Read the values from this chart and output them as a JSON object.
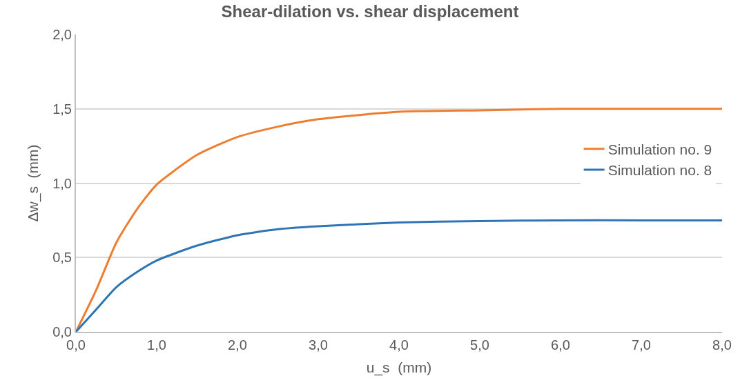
{
  "chart_data": {
    "type": "line",
    "title": "Shear-dilation vs. shear displacement",
    "xlabel": "u_s  (mm)",
    "ylabel": "Δw_s  (mm)",
    "x": [
      0,
      0.25,
      0.5,
      0.75,
      1,
      1.5,
      2,
      2.5,
      3,
      4,
      5,
      6,
      7,
      8
    ],
    "series": [
      {
        "name": "Simulation no. 9",
        "color": "#ed7d31",
        "values": [
          0,
          0.28,
          0.6,
          0.82,
          0.99,
          1.19,
          1.31,
          1.38,
          1.43,
          1.48,
          1.49,
          1.5,
          1.5,
          1.5
        ]
      },
      {
        "name": "Simulation no. 8",
        "color": "#2e75b6",
        "values": [
          0,
          0.15,
          0.3,
          0.4,
          0.48,
          0.58,
          0.65,
          0.69,
          0.71,
          0.735,
          0.745,
          0.75,
          0.75,
          0.75
        ]
      }
    ],
    "xlim": [
      0,
      8
    ],
    "ylim": [
      0,
      2
    ],
    "xticks": [
      {
        "value": 0,
        "label": "0,0"
      },
      {
        "value": 1,
        "label": "1,0"
      },
      {
        "value": 2,
        "label": "2,0"
      },
      {
        "value": 3,
        "label": "3,0"
      },
      {
        "value": 4,
        "label": "4,0"
      },
      {
        "value": 5,
        "label": "5,0"
      },
      {
        "value": 6,
        "label": "6,0"
      },
      {
        "value": 7,
        "label": "7,0"
      },
      {
        "value": 8,
        "label": "8,0"
      }
    ],
    "yticks": [
      {
        "value": 0,
        "label": "0,0"
      },
      {
        "value": 0.5,
        "label": "0,5"
      },
      {
        "value": 1,
        "label": "1,0"
      },
      {
        "value": 1.5,
        "label": "1,5"
      },
      {
        "value": 2,
        "label": "2,0"
      }
    ],
    "grid": "y",
    "legend": "right",
    "marker": "none",
    "line_style": "solid"
  }
}
